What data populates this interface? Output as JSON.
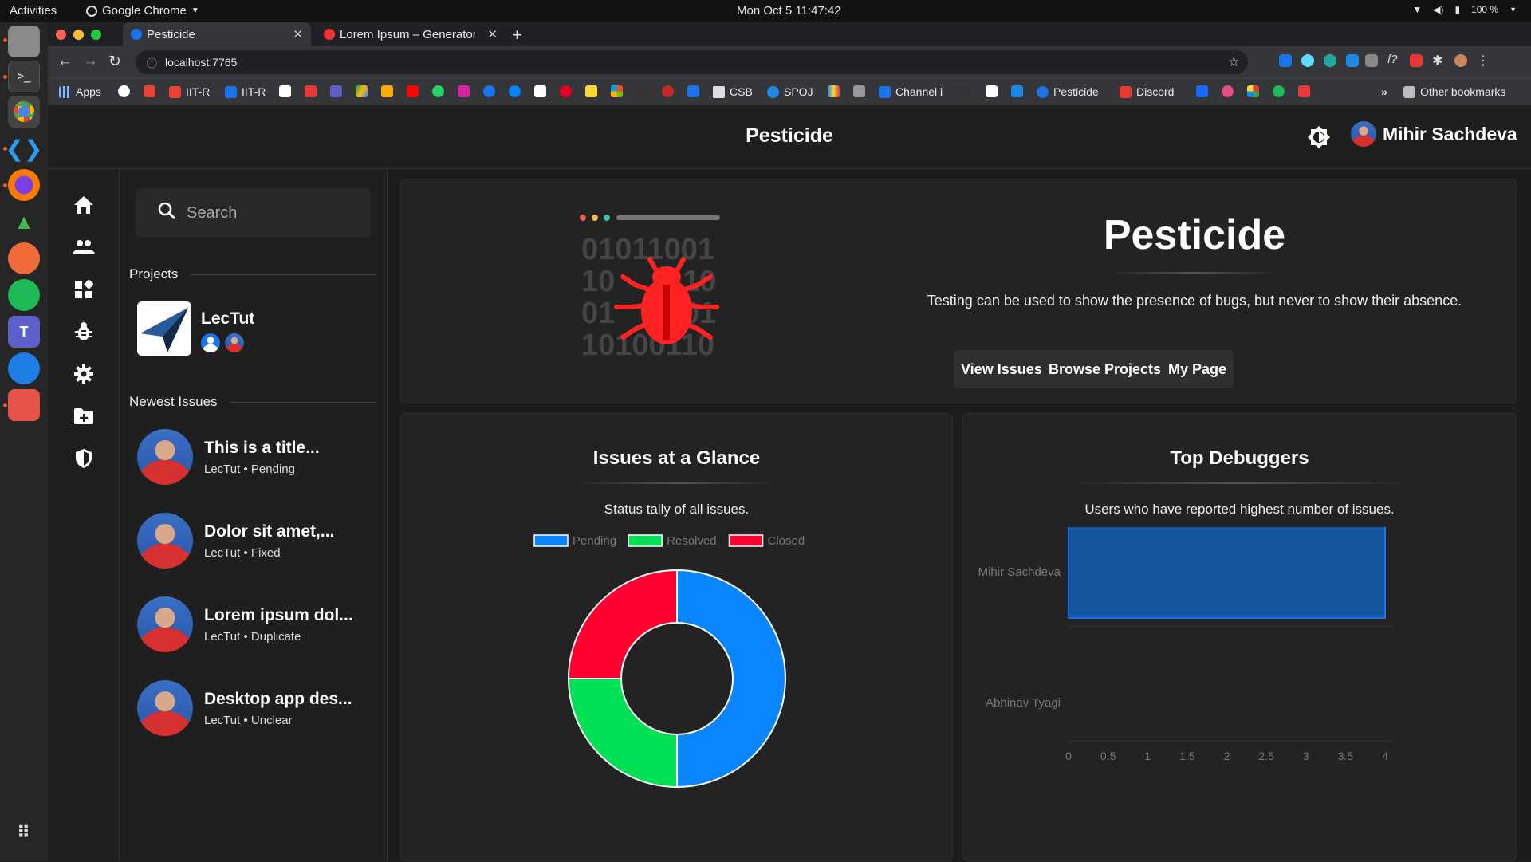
{
  "os_bar": {
    "activities": "Activities",
    "app_menu": "Google Chrome",
    "clock": "Mon Oct 5  11:47:42",
    "battery": "100 %"
  },
  "browser": {
    "tabs": [
      {
        "label": "Pesticide",
        "active": true
      },
      {
        "label": "Lorem Ipsum – Generator",
        "active": false
      }
    ],
    "url": "localhost:7765",
    "bookmarks": [
      "Apps",
      "IIT-R",
      "IIT-R",
      "CSB",
      "SPOJ",
      "Channel i",
      "Pesticide",
      "Discord"
    ],
    "other_bookmarks": "Other bookmarks",
    "overflow": "»"
  },
  "app": {
    "title": "Pesticide",
    "user_name": "Mihir Sachdeva",
    "search_placeholder": "Search",
    "projects_heading": "Projects",
    "project": {
      "name": "LecTut"
    },
    "issues_heading": "Newest Issues",
    "issues": [
      {
        "title": "This is a title...",
        "project": "LecTut",
        "status": "Pending"
      },
      {
        "title": "Dolor sit amet,...",
        "project": "LecTut",
        "status": "Fixed"
      },
      {
        "title": "Lorem ipsum dol...",
        "project": "LecTut",
        "status": "Duplicate"
      },
      {
        "title": "Desktop app des...",
        "project": "LecTut",
        "status": "Unclear"
      }
    ],
    "hero": {
      "title": "Pesticide",
      "quote": "Testing can be used to show the presence of bugs, but never to show their absence.",
      "binary_rows": [
        "01011001",
        "10",
        "10",
        "01",
        "01",
        "10100110"
      ],
      "buttons": [
        "View Issues",
        "Browse Projects",
        "My Page"
      ]
    }
  },
  "chart_data": [
    {
      "type": "pie",
      "title": "Issues at a Glance",
      "subtitle": "Status tally of all issues.",
      "categories": [
        "Pending",
        "Resolved",
        "Closed"
      ],
      "values": [
        2,
        1,
        1
      ],
      "colors": [
        "#0a84ff",
        "#00e054",
        "#ff0030"
      ],
      "legend": "top"
    },
    {
      "type": "bar",
      "orientation": "horizontal",
      "title": "Top Debuggers",
      "subtitle": "Users who have reported highest number of issues.",
      "categories": [
        "Mihir Sachdeva",
        "Abhinav Tyagi"
      ],
      "values": [
        4,
        0
      ],
      "x_ticks": [
        "0",
        "0.5",
        "1",
        "1.5",
        "2",
        "2.5",
        "3",
        "3.5",
        "4"
      ],
      "xlim": [
        0,
        4
      ],
      "bar_color": "#1556a0"
    }
  ]
}
